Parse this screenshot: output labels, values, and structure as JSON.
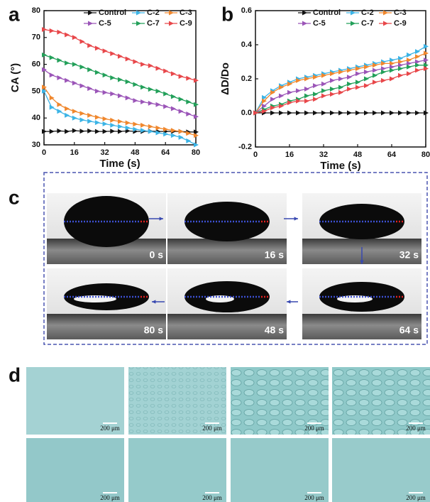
{
  "chart_data": [
    {
      "type": "line",
      "xlabel": "Time (s)",
      "ylabel": "CA (°)",
      "x": [
        0,
        4,
        8,
        12,
        16,
        20,
        24,
        28,
        32,
        36,
        40,
        44,
        48,
        52,
        56,
        60,
        64,
        68,
        72,
        76,
        80
      ],
      "xlim": [
        0,
        80
      ],
      "xticks": [
        0,
        16,
        32,
        48,
        64,
        80
      ],
      "ylim": [
        30,
        80
      ],
      "yticks": [
        30,
        40,
        50,
        60,
        70,
        80
      ],
      "series": [
        {
          "name": "Control",
          "color": "#111111",
          "values": [
            35,
            35,
            35.2,
            35,
            35.3,
            35.1,
            35.2,
            35,
            35,
            35.1,
            35,
            35.2,
            35,
            35,
            35.1,
            35,
            35,
            35,
            35,
            34.8,
            34.8
          ]
        },
        {
          "name": "C-2",
          "color": "#3cb4e6",
          "values": [
            50,
            44,
            42.5,
            41,
            40,
            39.3,
            38.8,
            38.3,
            37.8,
            37.3,
            36.8,
            36.3,
            35.8,
            35.4,
            35,
            34.5,
            34,
            33.5,
            32.8,
            31.5,
            30
          ]
        },
        {
          "name": "C-3",
          "color": "#f0872d",
          "values": [
            51.5,
            47.5,
            45,
            43.5,
            42.5,
            41.7,
            41,
            40.3,
            39.7,
            39.2,
            38.7,
            38.2,
            37.7,
            37.3,
            36.8,
            36.3,
            35.8,
            35.4,
            35,
            34.3,
            33.5
          ]
        },
        {
          "name": "C-5",
          "color": "#9b55b8",
          "values": [
            58,
            56,
            55,
            54,
            53,
            52,
            51,
            50,
            49.5,
            49,
            48.3,
            47.5,
            46.5,
            46,
            45.5,
            45,
            44.3,
            43.5,
            42.5,
            41.5,
            40.5
          ]
        },
        {
          "name": "C-7",
          "color": "#23a05a",
          "values": [
            63.5,
            62.5,
            61.5,
            60.5,
            60,
            59,
            58,
            57,
            56,
            55,
            54.3,
            53.5,
            52.5,
            51.5,
            50.7,
            50,
            49,
            48,
            47,
            46,
            45
          ]
        },
        {
          "name": "C-9",
          "color": "#e8474a",
          "values": [
            73,
            72.5,
            72,
            71,
            70,
            68.5,
            67,
            66,
            65,
            64,
            63,
            62,
            61,
            60,
            59.5,
            58.5,
            57.5,
            56.5,
            55.5,
            54.8,
            54
          ]
        }
      ]
    },
    {
      "type": "line",
      "xlabel": "Time (s)",
      "ylabel": "ΔD/Do",
      "x": [
        0,
        4,
        8,
        12,
        16,
        20,
        24,
        28,
        32,
        36,
        40,
        44,
        48,
        52,
        56,
        60,
        64,
        68,
        72,
        76,
        80
      ],
      "xlim": [
        0,
        80
      ],
      "xticks": [
        0,
        16,
        32,
        48,
        64,
        80
      ],
      "ylim": [
        -0.2,
        0.6
      ],
      "yticks": [
        -0.2,
        {
          "value": 0,
          "label": "0.0"
        },
        0.2,
        0.4,
        0.6
      ],
      "series": [
        {
          "name": "Control",
          "color": "#111111",
          "values": [
            0,
            0,
            0,
            0,
            0,
            0,
            0,
            0,
            0,
            0,
            0,
            0,
            0,
            0,
            0,
            0,
            0,
            0,
            0,
            0,
            0
          ]
        },
        {
          "name": "C-2",
          "color": "#3cb4e6",
          "values": [
            0,
            0.09,
            0.13,
            0.16,
            0.18,
            0.2,
            0.21,
            0.22,
            0.23,
            0.24,
            0.25,
            0.26,
            0.27,
            0.28,
            0.29,
            0.3,
            0.31,
            0.32,
            0.34,
            0.36,
            0.39
          ]
        },
        {
          "name": "C-3",
          "color": "#f0872d",
          "values": [
            0,
            0.07,
            0.12,
            0.15,
            0.17,
            0.19,
            0.2,
            0.21,
            0.22,
            0.23,
            0.24,
            0.25,
            0.26,
            0.27,
            0.28,
            0.29,
            0.29,
            0.3,
            0.31,
            0.33,
            0.35
          ]
        },
        {
          "name": "C-5",
          "color": "#9b55b8",
          "values": [
            0,
            0.04,
            0.08,
            0.1,
            0.12,
            0.13,
            0.14,
            0.16,
            0.17,
            0.19,
            0.2,
            0.21,
            0.23,
            0.24,
            0.25,
            0.26,
            0.27,
            0.28,
            0.29,
            0.3,
            0.31
          ]
        },
        {
          "name": "C-7",
          "color": "#23a05a",
          "values": [
            0,
            0.02,
            0.04,
            0.05,
            0.07,
            0.08,
            0.1,
            0.11,
            0.13,
            0.14,
            0.15,
            0.17,
            0.18,
            0.2,
            0.22,
            0.24,
            0.25,
            0.26,
            0.27,
            0.28,
            0.28
          ]
        },
        {
          "name": "C-9",
          "color": "#e8474a",
          "values": [
            0,
            0.01,
            0.03,
            0.04,
            0.06,
            0.07,
            0.07,
            0.08,
            0.1,
            0.11,
            0.12,
            0.14,
            0.15,
            0.16,
            0.18,
            0.19,
            0.2,
            0.22,
            0.23,
            0.25,
            0.26
          ]
        }
      ]
    }
  ],
  "panel_labels": [
    "a",
    "b",
    "c",
    "d"
  ],
  "droplet_times": [
    "0 s",
    "16 s",
    "32 s",
    "48 s",
    "64 s",
    "80 s"
  ],
  "scale_labels": [
    "200 μm",
    "200 μm",
    "200 μm",
    "200 μm",
    "200 μm",
    "200 μm",
    "200 μm",
    "200 μm"
  ]
}
